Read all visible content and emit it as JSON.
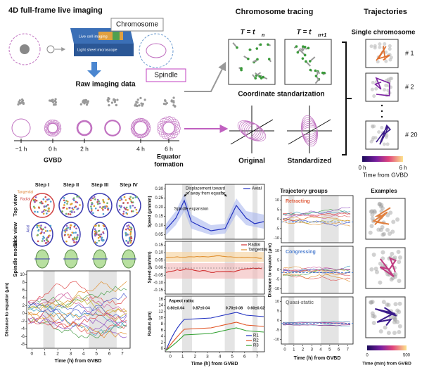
{
  "panel_a": {
    "title": "4D full-frame live imaging",
    "chromosome": "Chromosome",
    "spindle": "Spindle",
    "live_cell": "Live cell imaging",
    "microscope": "Light sheet microscope",
    "raw": "Raw imaging data",
    "times": [
      "−1 h",
      "0 h",
      "2 h",
      "4 h",
      "6 h"
    ],
    "gvbd": "GVBD",
    "equator": [
      "Equator",
      "formation"
    ]
  },
  "tracing": {
    "title": "Chromosome tracing",
    "t_label": "T = t",
    "subs": [
      "n",
      "n+1"
    ],
    "standardization": "Coordinate standarization",
    "original": "Original",
    "standardized": "Standardized"
  },
  "trajectories": {
    "title": "Trajectories",
    "subtitle": "Single chromosome",
    "labels": [
      "# 1",
      "# 2",
      "# 20"
    ],
    "colorbar": [
      "0 h",
      "6 h"
    ],
    "colorbar_label": "Time from GVBD"
  },
  "steps": {
    "labels": [
      "Step I",
      "Step II",
      "Step III",
      "Step IV"
    ],
    "rows": [
      "Top view",
      "Side view",
      "Spindle model"
    ],
    "axes": [
      "Tangential",
      "Radial",
      "Axial"
    ]
  },
  "step_chart": {
    "ylabel": "Distance to equator (μm)",
    "yticks": [
      "10",
      "8",
      "6",
      "4",
      "2",
      "0",
      "-2",
      "-4",
      "-6",
      "-8"
    ],
    "xticks": [
      "0",
      "1",
      "2",
      "3",
      "4",
      "5",
      "6",
      "7"
    ],
    "xlabel": "Time (h) from GVBD"
  },
  "speed_chart": {
    "legend": "Axial",
    "annotation": [
      "Displacement toward",
      "or away from equator"
    ],
    "expansion": "Spindle expansion",
    "ylabel": "Speed (μm/min)",
    "yticks": [
      "0.30",
      "0.25",
      "0.20",
      "0.15",
      "0.10",
      "0.05"
    ]
  },
  "rt_chart": {
    "legend": [
      "Radial",
      "Tangential"
    ],
    "ylabel": "Speed (μm/min)",
    "yticks": [
      "0.15",
      "0.10",
      "0.05",
      "0.00",
      "-0.05",
      "-0.10",
      "-0.15"
    ]
  },
  "radius_chart": {
    "aspect": "Aspect ratio:",
    "ratios": [
      "0.80±0.04",
      "0.87±0.04",
      "0.70±0.08",
      "0.60±0.02"
    ],
    "legend": [
      "R1",
      "R2",
      "R3"
    ],
    "ylabel": "Radius (μm)",
    "yticks": [
      "16",
      "14",
      "12",
      "10",
      "8",
      "6",
      "4",
      "2",
      "0"
    ],
    "xticks": [
      "0",
      "1",
      "2",
      "3",
      "4",
      "5",
      "6",
      "7"
    ],
    "xlabel": "Time (h) from GVBD"
  },
  "groups": {
    "title": "Trajectory groups",
    "names": [
      "Retracting",
      "Congressing",
      "Quasi-static"
    ],
    "ylabel": "Distance to equator (μm)",
    "yticks": [
      "10",
      "5",
      "0",
      "-5",
      "-10"
    ],
    "xticks": [
      "0",
      "1",
      "2",
      "3",
      "4",
      "5",
      "6",
      "7"
    ],
    "xlabel": "Time (h) from GVBD"
  },
  "examples": {
    "title": "Examples",
    "colorbar": [
      "0",
      "500"
    ],
    "colorbar_label": "Time (min) from GVBD"
  }
}
